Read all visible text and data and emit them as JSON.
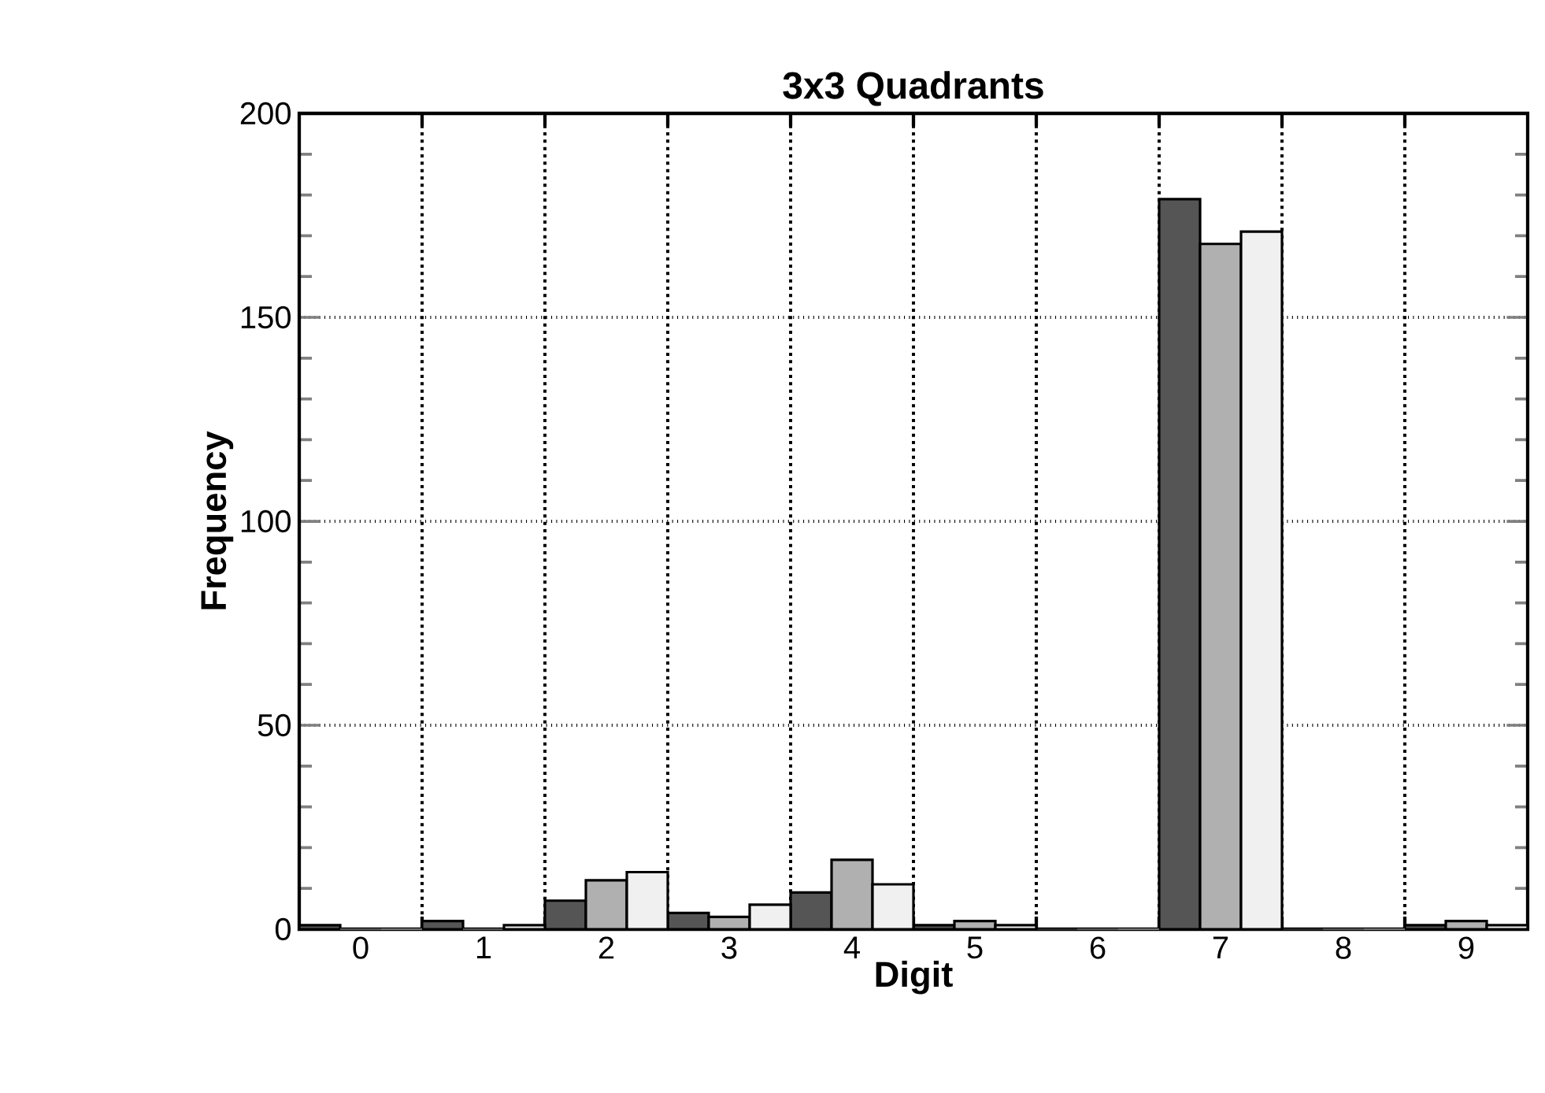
{
  "chart_data": {
    "type": "bar",
    "title": "3x3   Quadrants",
    "xlabel": "Digit",
    "ylabel": "Frequency",
    "categories": [
      "0",
      "1",
      "2",
      "3",
      "4",
      "5",
      "6",
      "7",
      "8",
      "9"
    ],
    "series": [
      {
        "color": "#555555",
        "values": [
          1,
          2,
          7,
          4,
          9,
          1,
          0,
          179,
          0,
          1
        ]
      },
      {
        "color": "#b0b0b0",
        "values": [
          0,
          0,
          12,
          3,
          17,
          2,
          0,
          168,
          0,
          2
        ]
      },
      {
        "color": "#f0f0f0",
        "values": [
          0,
          1,
          14,
          6,
          11,
          1,
          0,
          171,
          0,
          1
        ]
      }
    ],
    "ylim": [
      0,
      200
    ],
    "yticks": [
      0,
      50,
      100,
      150,
      200
    ],
    "grid": true
  }
}
